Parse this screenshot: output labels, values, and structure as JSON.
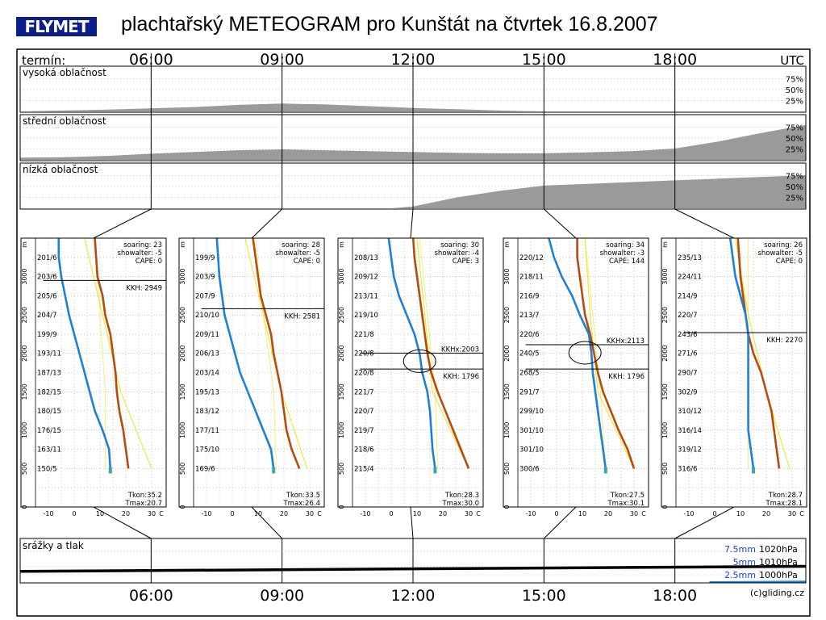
{
  "header": {
    "logo_text": "FLYMET",
    "title": "plachtařský METEOGRAM pro Kunštát na čtvrtek 16.8.2007"
  },
  "timeline": {
    "label": "termín:",
    "unit": "UTC",
    "times": [
      "06:00",
      "09:00",
      "12:00",
      "15:00",
      "18:00"
    ],
    "range_hours": [
      3,
      21
    ]
  },
  "cloud_panels": [
    {
      "label": "vysoká oblačnost",
      "ticks": [
        "75%",
        "50%",
        "25%"
      ],
      "series": {
        "name": "",
        "hours": [
          3,
          5,
          7,
          8,
          9,
          10,
          11,
          12,
          13,
          14,
          15,
          17,
          19,
          21
        ],
        "values": [
          0,
          4,
          10,
          15,
          18,
          16,
          12,
          8,
          5,
          2,
          0,
          0,
          0,
          0
        ]
      }
    },
    {
      "label": "střední oblačnost",
      "ticks": [
        "75%",
        "50%",
        "25%"
      ],
      "series": {
        "name": "",
        "hours": [
          3,
          4,
          5,
          6,
          7,
          8,
          9,
          10,
          11,
          12,
          13,
          14,
          15,
          16,
          17,
          18,
          19,
          20,
          21
        ],
        "values": [
          5,
          6,
          9,
          14,
          18,
          22,
          24,
          22,
          20,
          18,
          16,
          15,
          15,
          17,
          20,
          26,
          42,
          62,
          80
        ]
      }
    },
    {
      "label": "nízká oblačnost",
      "ticks": [
        "75%",
        "50%",
        "25%"
      ],
      "series": {
        "name": "",
        "hours": [
          3,
          11.5,
          12,
          13,
          14,
          15,
          16,
          17,
          18,
          19,
          20,
          21
        ],
        "values": [
          0,
          0,
          4,
          25,
          40,
          52,
          56,
          60,
          64,
          68,
          72,
          76
        ]
      }
    }
  ],
  "soundings": [
    {
      "time": "06:00",
      "soaring": "soaring: 23",
      "showalter": "showalter: -5",
      "cape": "CAPE: 0",
      "kkh_label": "KKH: 2949",
      "kkh_alt": 2949,
      "kkhx_label": "",
      "kkhx_alt": null,
      "tkon": "Tkon:35.2",
      "tmax": "Tmax:20.7",
      "winds": [
        "150/5",
        "163/11",
        "176/15",
        "180/15",
        "182/15",
        "187/13",
        "193/11",
        "199/9",
        "204/7",
        "205/6",
        "203/6",
        "201/6"
      ],
      "temp": [
        [
          500,
          21
        ],
        [
          750,
          20
        ],
        [
          1000,
          19
        ],
        [
          1250,
          17.5
        ],
        [
          1500,
          16.5
        ],
        [
          1750,
          16
        ],
        [
          2000,
          15
        ],
        [
          2250,
          14
        ],
        [
          2500,
          12
        ],
        [
          2750,
          11
        ],
        [
          3000,
          9
        ],
        [
          3250,
          8.5
        ],
        [
          3500,
          8
        ]
      ],
      "dew": [
        [
          500,
          14
        ],
        [
          750,
          13.5
        ],
        [
          1000,
          11
        ],
        [
          1250,
          8
        ],
        [
          1500,
          6
        ],
        [
          1750,
          4
        ],
        [
          2000,
          2
        ],
        [
          2250,
          0
        ],
        [
          2500,
          -2
        ],
        [
          2750,
          -3.5
        ],
        [
          3000,
          -5
        ],
        [
          3250,
          -6
        ],
        [
          3500,
          -6
        ]
      ],
      "adiabat": [
        [
          500,
          30
        ],
        [
          1500,
          18
        ],
        [
          2500,
          11
        ],
        [
          3500,
          4
        ]
      ],
      "moist": [
        [
          500,
          12
        ],
        [
          1500,
          12
        ],
        [
          2500,
          10
        ],
        [
          3500,
          8
        ]
      ]
    },
    {
      "time": "09:00",
      "soaring": "soaring: 28",
      "showalter": "showalter: -5",
      "cape": "CAPE: 0",
      "kkh_label": "KKH: 2581",
      "kkh_alt": 2581,
      "kkhx_label": "",
      "kkhx_alt": null,
      "tkon": "Tkon:33.5",
      "tmax": "Tmax:26.4",
      "winds": [
        "169/6",
        "175/10",
        "177/11",
        "183/12",
        "195/13",
        "203/14",
        "206/13",
        "209/11",
        "210/10",
        "207/9",
        "203/9",
        "199/9"
      ],
      "temp": [
        [
          500,
          26
        ],
        [
          750,
          23
        ],
        [
          1000,
          21
        ],
        [
          1250,
          20
        ],
        [
          1500,
          19
        ],
        [
          1750,
          17.5
        ],
        [
          2000,
          16
        ],
        [
          2250,
          15
        ],
        [
          2500,
          13
        ],
        [
          2750,
          11
        ],
        [
          3000,
          10
        ],
        [
          3250,
          9
        ],
        [
          3500,
          8
        ]
      ],
      "dew": [
        [
          500,
          16
        ],
        [
          750,
          15
        ],
        [
          1000,
          12
        ],
        [
          1250,
          9
        ],
        [
          1500,
          6
        ],
        [
          1750,
          3
        ],
        [
          2000,
          1
        ],
        [
          2250,
          -1
        ],
        [
          2500,
          -3
        ],
        [
          2750,
          -4
        ],
        [
          3000,
          -5
        ],
        [
          3250,
          -5.5
        ],
        [
          3500,
          -6
        ]
      ],
      "adiabat": [
        [
          500,
          29
        ],
        [
          1500,
          19
        ],
        [
          2500,
          12
        ],
        [
          3500,
          5
        ]
      ],
      "moist": [
        [
          500,
          17
        ],
        [
          1500,
          16
        ],
        [
          2500,
          12
        ],
        [
          3500,
          9
        ]
      ]
    },
    {
      "time": "12:00",
      "soaring": "soaring: 30",
      "showalter": "showalter: -4",
      "cape": "CAPE: 3",
      "kkh_label": "KKH: 1796",
      "kkh_alt": 1796,
      "kkhx_label": "KKHx:2003",
      "kkhx_alt": 2003,
      "tkon": "Tkon:28.3",
      "tmax": "Tmax:30.0",
      "winds": [
        "215/4",
        "218/6",
        "219/7",
        "220/7",
        "221/7",
        "220/8",
        "220/8",
        "221/8",
        "219/10",
        "213/11",
        "209/12",
        "208/13"
      ],
      "temp": [
        [
          500,
          30
        ],
        [
          750,
          27
        ],
        [
          1000,
          24
        ],
        [
          1250,
          21
        ],
        [
          1500,
          18
        ],
        [
          1750,
          15.5
        ],
        [
          2000,
          14
        ],
        [
          2250,
          13
        ],
        [
          2500,
          12
        ],
        [
          2750,
          11
        ],
        [
          3000,
          10
        ],
        [
          3250,
          9
        ],
        [
          3500,
          8.5
        ]
      ],
      "dew": [
        [
          500,
          17
        ],
        [
          750,
          16
        ],
        [
          1000,
          15.5
        ],
        [
          1250,
          15
        ],
        [
          1500,
          14
        ],
        [
          1750,
          12
        ],
        [
          2000,
          11
        ],
        [
          2250,
          9
        ],
        [
          2500,
          6
        ],
        [
          2750,
          3
        ],
        [
          3000,
          1
        ],
        [
          3250,
          0
        ],
        [
          3500,
          -1
        ]
      ],
      "adiabat": [
        [
          500,
          30
        ],
        [
          1500,
          16
        ],
        [
          2500,
          13
        ],
        [
          3500,
          10
        ]
      ],
      "moist": [
        [
          500,
          18
        ],
        [
          1500,
          17
        ],
        [
          2500,
          14
        ],
        [
          3500,
          11
        ]
      ]
    },
    {
      "time": "15:00",
      "soaring": "soaring: 34",
      "showalter": "showalter: -3",
      "cape": "CAPE: 144",
      "kkh_label": "KKH: 1796",
      "kkh_alt": 1796,
      "kkhx_label": "KKHx:2113",
      "kkhx_alt": 2113,
      "tkon": "Tkon:27.5",
      "tmax": "Tmax:30.1",
      "winds": [
        "300/6",
        "301/10",
        "301/10",
        "299/10",
        "291/7",
        "268/5",
        "240/5",
        "220/6",
        "213/7",
        "216/9",
        "218/11",
        "220/12"
      ],
      "temp": [
        [
          500,
          30
        ],
        [
          750,
          27.5
        ],
        [
          1000,
          24
        ],
        [
          1250,
          21
        ],
        [
          1500,
          18
        ],
        [
          1750,
          16
        ],
        [
          2000,
          14.5
        ],
        [
          2250,
          13
        ],
        [
          2500,
          11
        ],
        [
          2750,
          10
        ],
        [
          3000,
          9
        ],
        [
          3250,
          8
        ],
        [
          3500,
          8
        ]
      ],
      "dew": [
        [
          500,
          19
        ],
        [
          750,
          18
        ],
        [
          1000,
          17
        ],
        [
          1250,
          16
        ],
        [
          1500,
          15
        ],
        [
          1750,
          14
        ],
        [
          2000,
          13.5
        ],
        [
          2250,
          12.5
        ],
        [
          2500,
          9
        ],
        [
          2750,
          6
        ],
        [
          3000,
          2
        ],
        [
          3250,
          -1
        ],
        [
          3500,
          -3
        ]
      ],
      "adiabat": [
        [
          500,
          30
        ],
        [
          1500,
          16
        ],
        [
          2500,
          13
        ],
        [
          3500,
          11
        ]
      ],
      "moist": [
        [
          500,
          19
        ],
        [
          1500,
          17
        ],
        [
          2500,
          14
        ],
        [
          3500,
          11
        ]
      ]
    },
    {
      "time": "18:00",
      "soaring": "soaring: 26",
      "showalter": "showalter: -5",
      "cape": "CAPE: 0",
      "kkh_label": "KKH: 2270",
      "kkh_alt": 2270,
      "kkhx_label": "",
      "kkhx_alt": null,
      "tkon": "Tkon:28.7",
      "tmax": "Tmax:28.1",
      "winds": [
        "316/6",
        "319/12",
        "316/14",
        "310/12",
        "302/9",
        "290/7",
        "271/6",
        "243/6",
        "220/7",
        "214/9",
        "224/11",
        "235/13"
      ],
      "temp": [
        [
          500,
          25
        ],
        [
          750,
          24
        ],
        [
          1000,
          23
        ],
        [
          1250,
          22
        ],
        [
          1500,
          20
        ],
        [
          1750,
          18
        ],
        [
          2000,
          15
        ],
        [
          2250,
          13
        ],
        [
          2500,
          12
        ],
        [
          2750,
          11
        ],
        [
          3000,
          10
        ],
        [
          3250,
          9.5
        ],
        [
          3500,
          9
        ]
      ],
      "dew": [
        [
          500,
          15
        ],
        [
          750,
          14
        ],
        [
          1000,
          13
        ],
        [
          1250,
          13
        ],
        [
          1500,
          13
        ],
        [
          1750,
          13
        ],
        [
          2000,
          13
        ],
        [
          2250,
          13
        ],
        [
          2500,
          12
        ],
        [
          2750,
          10
        ],
        [
          3000,
          8
        ],
        [
          3250,
          7
        ],
        [
          3500,
          6
        ]
      ],
      "adiabat": [
        [
          500,
          29
        ],
        [
          1500,
          20
        ],
        [
          2500,
          13
        ],
        [
          3500,
          8
        ]
      ],
      "moist": [
        [
          500,
          13
        ],
        [
          1500,
          13
        ],
        [
          2500,
          13
        ],
        [
          3500,
          13
        ]
      ]
    }
  ],
  "sounding_axes": {
    "altitude_unit": "m",
    "altitude_ticks": [
      0,
      500,
      1000,
      1500,
      2000,
      2500,
      3000
    ],
    "altitude_range": [
      0,
      3500
    ],
    "temp_ticks": [
      "-10",
      "0",
      "10",
      "20",
      "30"
    ],
    "temp_unit": "C",
    "temp_range": [
      -15,
      35
    ]
  },
  "precip": {
    "label": "srážky a tlak",
    "legend": [
      {
        "mm": "7.5mm",
        "hpa": "1020hPa"
      },
      {
        "mm": "5mm",
        "hpa": "1010hPa"
      },
      {
        "mm": "2.5mm",
        "hpa": "1000hPa"
      }
    ],
    "pressure_hours": [
      3,
      21
    ],
    "pressure_hpa": [
      1007.5,
      1010.8
    ],
    "rain_hours": [
      18.8,
      21
    ],
    "rain_mm": [
      0.2,
      0.3
    ]
  },
  "footer": {
    "times": [
      "06:00",
      "09:00",
      "12:00",
      "15:00",
      "18:00"
    ],
    "copyright": "(c)gliding.cz"
  },
  "colors": {
    "fill": "#9a9a9a",
    "temp": "#b84a0a",
    "dew": "#1e7fd8",
    "adiabat": "#f0e640",
    "moist": "#f2ee7a",
    "rain": "#1f7fe0",
    "legend_blue": "#1f3fe0"
  }
}
